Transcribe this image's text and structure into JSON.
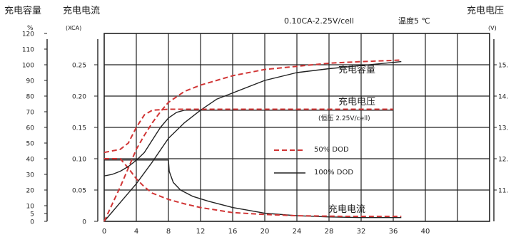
{
  "header": {
    "cap_title": "充电容量",
    "cap_unit": "%",
    "cur_title": "充电电流",
    "cur_unit": "(XCA)",
    "condition": "0.10CA-2.25V/cell",
    "temp_label": "温度5 ℃",
    "volt_title": "充电电压",
    "volt_unit": "(V)"
  },
  "annotations": {
    "capacity": "充电容量",
    "voltage": "充电电压",
    "voltage_note": "(恒压 2.25V/cell)",
    "current": "充电电流"
  },
  "legend": {
    "dashed_label": "50% DOD",
    "solid_label": "100% DOD"
  },
  "chart_data": {
    "type": "line",
    "x": {
      "ticks": [
        0,
        4,
        8,
        12,
        16,
        20,
        24,
        28,
        32,
        36,
        40
      ],
      "range": [
        0,
        48
      ]
    },
    "y_capacity": {
      "unit": "%",
      "ticks": [
        0,
        5,
        10,
        20,
        30,
        40,
        50,
        60,
        70,
        80,
        90,
        100,
        110,
        120
      ],
      "range": [
        0,
        120
      ]
    },
    "y_current": {
      "unit": "(XCA)",
      "ticks": [
        0,
        0.05,
        0.1,
        0.15,
        0.2,
        0.25
      ],
      "range": [
        0,
        0.3
      ]
    },
    "y_voltage": {
      "unit": "(V)",
      "ticks": [
        "11.",
        "12.",
        "13.",
        "14.",
        "15."
      ],
      "range": [
        10,
        16
      ]
    },
    "colors": {
      "dashed": "#d13535",
      "solid": "#222222"
    },
    "series": [
      {
        "name": "100% DOD",
        "style": "solid",
        "axis": "current",
        "points": [
          [
            0,
            0.098
          ],
          [
            8,
            0.098
          ],
          [
            8.1,
            0.08
          ],
          [
            8.6,
            0.062
          ],
          [
            9.5,
            0.05
          ],
          [
            11,
            0.04
          ],
          [
            13,
            0.032
          ],
          [
            16,
            0.022
          ],
          [
            20,
            0.013
          ],
          [
            24,
            0.009
          ],
          [
            28,
            0.007
          ],
          [
            32,
            0.006
          ],
          [
            37,
            0.006
          ]
        ]
      },
      {
        "name": "50% DOD",
        "style": "dashed",
        "axis": "current",
        "points": [
          [
            0,
            0.1
          ],
          [
            2,
            0.1
          ],
          [
            3,
            0.085
          ],
          [
            4,
            0.068
          ],
          [
            5,
            0.055
          ],
          [
            6,
            0.045
          ],
          [
            8,
            0.035
          ],
          [
            10,
            0.028
          ],
          [
            12,
            0.022
          ],
          [
            16,
            0.014
          ],
          [
            20,
            0.011
          ],
          [
            24,
            0.009
          ],
          [
            30,
            0.008
          ],
          [
            37,
            0.008
          ]
        ]
      },
      {
        "name": "100% DOD",
        "style": "solid",
        "axis": "capacity",
        "points": [
          [
            0,
            0
          ],
          [
            2,
            12
          ],
          [
            4,
            24
          ],
          [
            6,
            38
          ],
          [
            8,
            53
          ],
          [
            10,
            63
          ],
          [
            12,
            71
          ],
          [
            14,
            78
          ],
          [
            16,
            82
          ],
          [
            20,
            90
          ],
          [
            24,
            95
          ],
          [
            28,
            97.5
          ],
          [
            32,
            99.5
          ],
          [
            37,
            102
          ]
        ]
      },
      {
        "name": "50% DOD",
        "style": "dashed",
        "axis": "capacity",
        "points": [
          [
            0,
            0
          ],
          [
            2,
            22
          ],
          [
            3,
            34
          ],
          [
            4,
            46
          ],
          [
            5,
            55
          ],
          [
            6,
            63
          ],
          [
            7,
            70
          ],
          [
            8,
            76
          ],
          [
            10,
            83
          ],
          [
            12,
            87
          ],
          [
            16,
            93
          ],
          [
            20,
            97
          ],
          [
            24,
            99
          ],
          [
            28,
            101
          ],
          [
            32,
            102
          ],
          [
            37,
            103
          ]
        ]
      },
      {
        "name": "100% DOD",
        "style": "solid",
        "axis": "voltage",
        "points": [
          [
            0,
            11.45
          ],
          [
            1,
            11.5
          ],
          [
            2,
            11.6
          ],
          [
            3,
            11.75
          ],
          [
            4,
            11.95
          ],
          [
            5,
            12.2
          ],
          [
            6,
            12.6
          ],
          [
            7,
            13.0
          ],
          [
            8,
            13.3
          ],
          [
            9,
            13.48
          ],
          [
            10,
            13.55
          ],
          [
            36,
            13.55
          ]
        ]
      },
      {
        "name": "50% DOD",
        "style": "dashed",
        "axis": "voltage",
        "points": [
          [
            0,
            12.2
          ],
          [
            1,
            12.25
          ],
          [
            2,
            12.3
          ],
          [
            3,
            12.5
          ],
          [
            4,
            13.0
          ],
          [
            5,
            13.4
          ],
          [
            6,
            13.55
          ],
          [
            8,
            13.58
          ],
          [
            12,
            13.58
          ],
          [
            20,
            13.58
          ],
          [
            36,
            13.58
          ]
        ]
      }
    ]
  }
}
